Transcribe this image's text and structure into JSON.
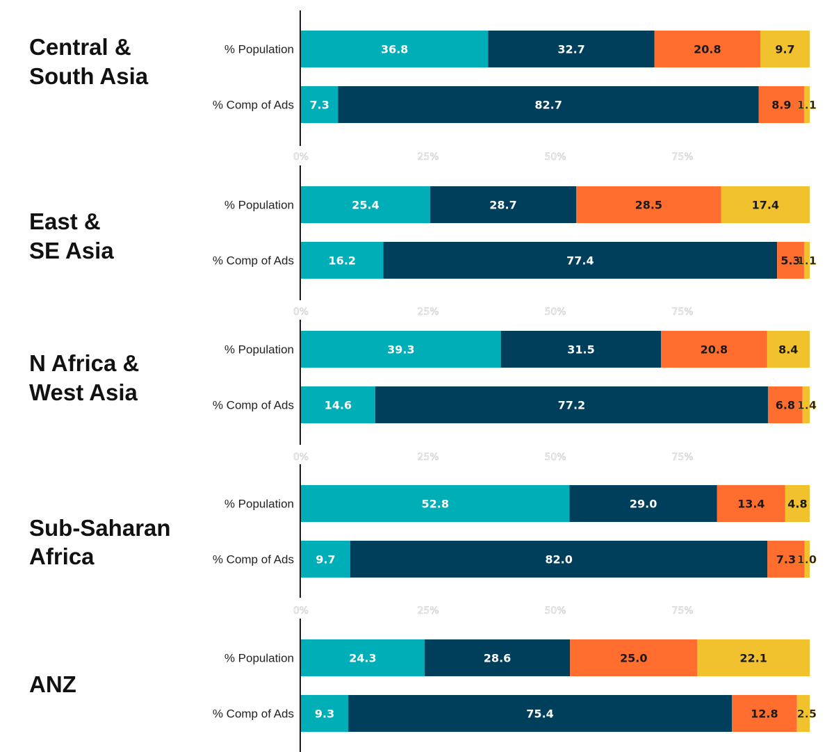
{
  "chart_data": {
    "type": "bar",
    "orientation": "horizontal",
    "stacked": true,
    "title": "",
    "xlabel": "",
    "ylabel": "",
    "xlim": [
      0,
      100
    ],
    "x_ticks": [
      "0%",
      "25%",
      "50%",
      "75%"
    ],
    "grid": false,
    "legend": null,
    "row_labels": [
      "% Population",
      "% Comp of Ads"
    ],
    "series_colors": [
      "#00AEB8",
      "#003F5C",
      "#FF6E2E",
      "#F2C12E"
    ],
    "label_colors": [
      "#ffffff",
      "#ffffff",
      "#1a1a1a",
      "#1a1a1a"
    ],
    "groups": [
      {
        "name": "Central & South Asia",
        "title_lines": [
          "Central &",
          "South Asia"
        ],
        "rows": [
          {
            "label": "% Population",
            "values": [
              36.8,
              32.7,
              20.8,
              9.7
            ]
          },
          {
            "label": "% Comp of Ads",
            "values": [
              7.3,
              82.7,
              8.9,
              1.1
            ]
          }
        ]
      },
      {
        "name": "East & SE Asia",
        "title_lines": [
          "East &",
          "SE Asia"
        ],
        "rows": [
          {
            "label": "% Population",
            "values": [
              25.4,
              28.7,
              28.5,
              17.4
            ]
          },
          {
            "label": "% Comp of Ads",
            "values": [
              16.2,
              77.4,
              5.3,
              1.1
            ]
          }
        ]
      },
      {
        "name": "N Africa & West Asia",
        "title_lines": [
          "N Africa &",
          "West Asia"
        ],
        "rows": [
          {
            "label": "% Population",
            "values": [
              39.3,
              31.5,
              20.8,
              8.4
            ]
          },
          {
            "label": "% Comp of Ads",
            "values": [
              14.6,
              77.2,
              6.8,
              1.4
            ]
          }
        ]
      },
      {
        "name": "Sub-Saharan Africa",
        "title_lines": [
          "Sub-Saharan",
          "Africa"
        ],
        "rows": [
          {
            "label": "% Population",
            "values": [
              52.8,
              29.0,
              13.4,
              4.8
            ]
          },
          {
            "label": "% Comp of Ads",
            "values": [
              9.7,
              82.0,
              7.3,
              1.0
            ]
          }
        ]
      },
      {
        "name": "ANZ",
        "title_lines": [
          "ANZ"
        ],
        "rows": [
          {
            "label": "% Population",
            "values": [
              24.3,
              28.6,
              25.0,
              22.1
            ]
          },
          {
            "label": "% Comp of Ads",
            "values": [
              9.3,
              75.4,
              12.8,
              2.5
            ]
          }
        ]
      }
    ]
  }
}
